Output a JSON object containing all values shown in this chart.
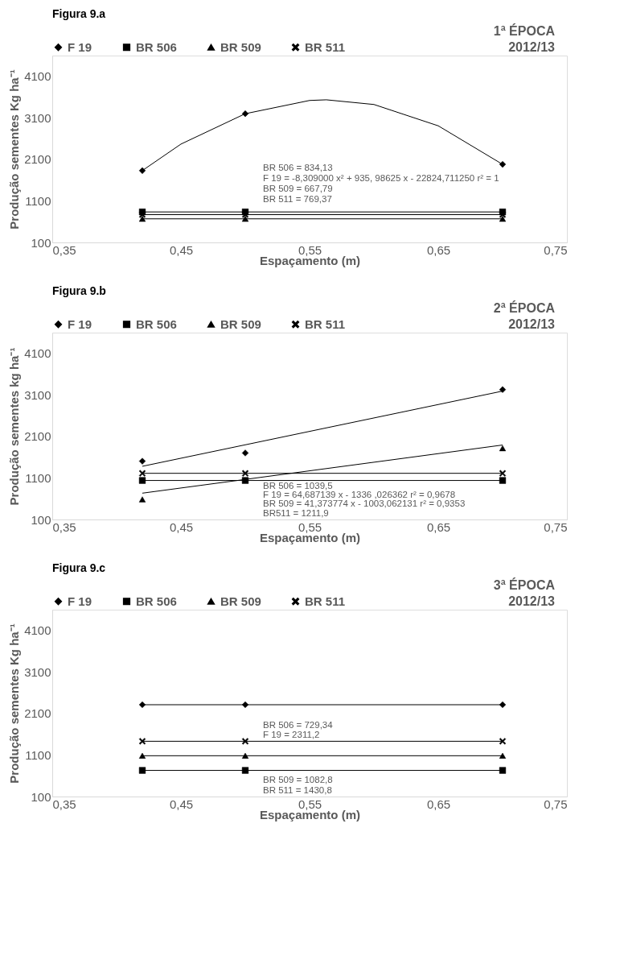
{
  "chart_data": [
    {
      "type": "line",
      "title": "Figura 9.a",
      "ylabel": "Produção sementes Kg ha⁻¹",
      "xlabel": "Espaçamento (m)",
      "legend": "top",
      "grid": false,
      "annotations": [
        "1ª ÉPOCA",
        "2012/13",
        "BR 506  = 834,13",
        "F 19  = -8,309000 x² + 935, 98625 x - 22824,711250    r² = 1",
        "BR 509 = 667,79",
        "BR 511 = 769,37"
      ],
      "x": [
        0.42,
        0.5,
        0.7
      ],
      "xlim": [
        0.35,
        0.75
      ],
      "xticks": [
        {
          "value": 0.35,
          "label": "0,35"
        },
        {
          "value": 0.45,
          "label": "0,45"
        },
        {
          "value": 0.55,
          "label": "0,55"
        },
        {
          "value": 0.65,
          "label": "0,65"
        },
        {
          "value": 0.75,
          "label": "0,75"
        }
      ],
      "ylim": [
        100,
        4600
      ],
      "yticks": [
        100,
        1100,
        2100,
        3100,
        4100
      ],
      "series": [
        {
          "x": [
            0.42,
            0.45,
            0.5,
            0.55,
            0.563,
            0.6,
            0.65,
            0.7
          ],
          "values": [
            1830,
            2468,
            3200,
            3519,
            3535,
            3422,
            2908,
            1980
          ],
          "color": "#000000",
          "marker": "none"
        },
        {
          "type": "scatter",
          "name": "F 19",
          "values": [
            1830,
            3200,
            1980
          ],
          "color": "#000000",
          "marker": "diamond"
        },
        {
          "name": "BR 506",
          "values": [
            834.13,
            834.13,
            834.13
          ],
          "color": "#000000",
          "marker": "square"
        },
        {
          "name": "BR 509",
          "values": [
            667.79,
            667.79,
            667.79
          ],
          "color": "#000000",
          "marker": "triangle"
        },
        {
          "name": "BR 511",
          "values": [
            769.37,
            769.37,
            769.37
          ],
          "color": "#000000",
          "marker": "cross"
        }
      ]
    },
    {
      "type": "line",
      "title": "Figura 9.b",
      "ylabel": "Produção sementes kg ha⁻¹",
      "xlabel": "Espaçamento (m)",
      "legend": "top",
      "grid": false,
      "annotations": [
        "2ª ÉPOCA",
        "2012/13",
        "BR 506 = 1039,5",
        "F 19 = 64,687139  x - 1336  ,026362  r² = 0,9678",
        "BR 509 = 41,373774 x - 1003,062131   r² = 0,9353",
        "BR511  = 1211,9"
      ],
      "x": [
        0.42,
        0.5,
        0.7
      ],
      "xlim": [
        0.35,
        0.75
      ],
      "xticks": [
        {
          "value": 0.35,
          "label": "0,35"
        },
        {
          "value": 0.45,
          "label": "0,45"
        },
        {
          "value": 0.55,
          "label": "0,55"
        },
        {
          "value": 0.65,
          "label": "0,65"
        },
        {
          "value": 0.75,
          "label": "0,75"
        }
      ],
      "ylim": [
        100,
        4600
      ],
      "yticks": [
        100,
        1100,
        2100,
        3100,
        4100
      ],
      "series": [
        {
          "x": [
            0.42,
            0.7
          ],
          "values": [
            1381,
            3192
          ],
          "color": "#000000",
          "marker": "none"
        },
        {
          "x": [
            0.42,
            0.7
          ],
          "values": [
            734,
            1893
          ],
          "color": "#000000",
          "marker": "none"
        },
        {
          "type": "scatter",
          "name": "F 19",
          "values": [
            1504,
            1701,
            3228
          ],
          "color": "#000000",
          "marker": "diamond"
        },
        {
          "name": "BR 506",
          "values": [
            1039.5,
            1039.5,
            1039.5
          ],
          "color": "#000000",
          "marker": "square"
        },
        {
          "type": "scatter",
          "name": "BR 509",
          "values": [
            584,
            null,
            1816
          ],
          "color": "#000000",
          "marker": "triangle"
        },
        {
          "name": "BR 511",
          "values": [
            1211.9,
            1211.9,
            1211.9
          ],
          "color": "#000000",
          "marker": "cross"
        }
      ]
    },
    {
      "type": "line",
      "title": "Figura 9.c",
      "ylabel": "Produção sementes Kg ha⁻¹",
      "xlabel": "Espaçamento (m)",
      "legend": "top",
      "grid": false,
      "annotations": [
        "3ª ÉPOCA",
        "2012/13",
        "BR 506  = 729,34",
        "F 19 = 2311,2",
        "BR 509 = 1082,8",
        "BR 511 = 1430,8"
      ],
      "x": [
        0.42,
        0.5,
        0.7
      ],
      "xlim": [
        0.35,
        0.75
      ],
      "xticks": [
        {
          "value": 0.35,
          "label": "0,35"
        },
        {
          "value": 0.45,
          "label": "0,45"
        },
        {
          "value": 0.55,
          "label": "0,55"
        },
        {
          "value": 0.65,
          "label": "0,65"
        },
        {
          "value": 0.75,
          "label": "0,75"
        }
      ],
      "ylim": [
        100,
        4600
      ],
      "yticks": [
        100,
        1100,
        2100,
        3100,
        4100
      ],
      "series": [
        {
          "name": "F 19",
          "values": [
            2311.2,
            2311.2,
            2311.2
          ],
          "color": "#000000",
          "marker": "diamond"
        },
        {
          "name": "BR 506",
          "values": [
            729.34,
            729.34,
            729.34
          ],
          "color": "#000000",
          "marker": "square"
        },
        {
          "name": "BR 509",
          "values": [
            1082.8,
            1082.8,
            1082.8
          ],
          "color": "#000000",
          "marker": "triangle"
        },
        {
          "name": "BR 511",
          "values": [
            1430.8,
            1430.8,
            1430.8
          ],
          "color": "#000000",
          "marker": "cross"
        }
      ]
    }
  ]
}
